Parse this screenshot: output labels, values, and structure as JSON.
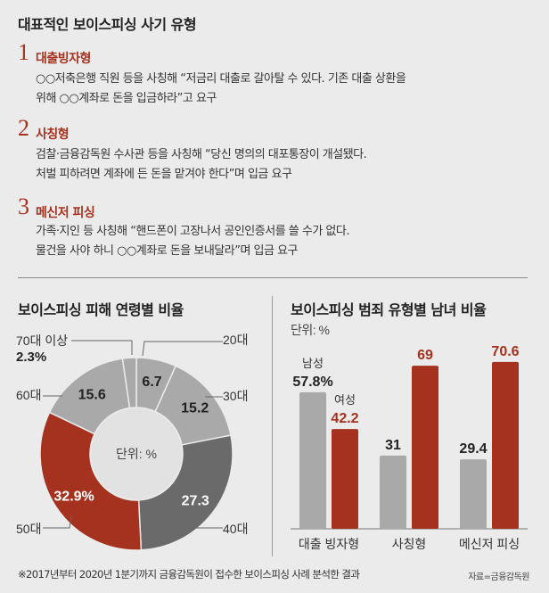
{
  "header": {
    "title": "대표적인 보이스피싱 사기 유형"
  },
  "types": [
    {
      "num": "1",
      "title": "대출빙자형",
      "lines": [
        "○○저축은행 직원 등을 사칭해 “저금리 대출로 갈아탈 수 있다. 기존 대출 상환을",
        "위해 ○○계좌로 돈을 입금하라”고 요구"
      ]
    },
    {
      "num": "2",
      "title": "사칭형",
      "lines": [
        "검찰·금융감독원 수사관 등을 사칭해 “당신 명의의 대포통장이 개설됐다.",
        "처벌 피하려면 계좌에 든 돈을 맡겨야 한다”며 입금 요구"
      ]
    },
    {
      "num": "3",
      "title": "메신저 피싱",
      "lines": [
        "가족·지인 등 사칭해 “핸드폰이 고장나서 공인인증서를 쓸 수가 없다.",
        "물건을 사야 하니 ○○계좌로 돈을 보내달라”며 입금 요구"
      ]
    }
  ],
  "colors": {
    "red": "#a5321e",
    "light": "#a9a9a9",
    "dark": "#6a6a6a",
    "center": "#e2e2e2"
  },
  "chart_data": [
    {
      "type": "pie",
      "title": "보이스피싱 피해 연령별 비율",
      "center_label": "단위: %",
      "categories": [
        "20대",
        "30대",
        "40대",
        "50대",
        "60대",
        "70대 이상"
      ],
      "values": [
        6.7,
        15.2,
        27.3,
        32.9,
        15.6,
        2.3
      ],
      "value_labels": [
        "6.7",
        "15.2",
        "27.3",
        "32.9%",
        "15.6",
        "2.3%"
      ]
    },
    {
      "type": "bar",
      "title": "보이스피싱 범죄 유형별 남녀 비율",
      "unit": "단위: %",
      "categories": [
        "대출 빙자형",
        "사칭형",
        "메신저 피싱"
      ],
      "series": [
        {
          "name": "남성",
          "values": [
            57.8,
            31,
            29.4
          ],
          "labels": [
            "57.8%",
            "31",
            "29.4"
          ]
        },
        {
          "name": "여성",
          "values": [
            42.2,
            69,
            70.6
          ],
          "labels": [
            "42.2",
            "69",
            "70.6"
          ]
        }
      ],
      "ylim": [
        0,
        75
      ]
    }
  ],
  "footer": {
    "note": "※2017년부터 2020년 1분기까지 금융감독원이 접수한 보이스피싱 사례 분석한 결과",
    "source": "자료=금융감독원"
  }
}
